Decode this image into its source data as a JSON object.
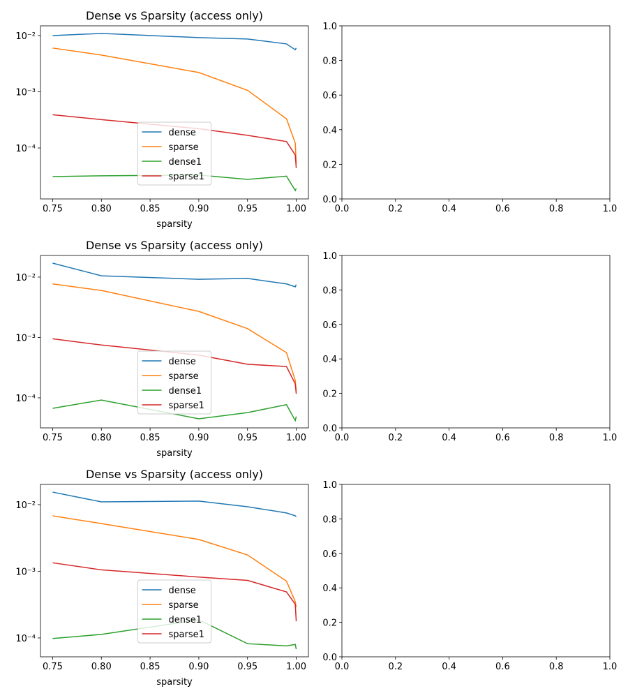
{
  "chart_data": [
    {
      "type": "line",
      "title": "Dense vs Sparsity (access only)",
      "x_label": "sparsity",
      "yscale": "log",
      "legend": "lower center",
      "x": [
        0.75,
        0.8,
        0.9,
        0.95,
        0.99,
        0.999,
        1.0
      ],
      "xlim": [
        0.7375,
        1.0125
      ],
      "xticks": [
        0.75,
        {
          "value": 0.8,
          "label": "0.80"
        },
        0.85,
        {
          "value": 0.9,
          "label": "0.90"
        },
        0.95,
        {
          "value": 1.0,
          "label": "1.00"
        }
      ],
      "ylim": [
        1.24e-05,
        0.0149
      ],
      "yticks": [
        {
          "value": 0.0001,
          "label": "10⁻⁴"
        },
        {
          "value": 0.001,
          "label": "10⁻³"
        },
        {
          "value": 0.01,
          "label": "10⁻²"
        }
      ],
      "series": [
        {
          "name": "dense",
          "color": "#1f77b4",
          "values": [
            0.01,
            0.0109,
            0.0092,
            0.0087,
            0.0071,
            0.0056,
            0.006
          ]
        },
        {
          "name": "sparse",
          "color": "#ff7f0e",
          "values": [
            0.006,
            0.0045,
            0.0022,
            0.00106,
            0.00033,
            0.000122,
            5.2e-05
          ]
        },
        {
          "name": "dense1",
          "color": "#2ca02c",
          "values": [
            3.1e-05,
            3.2e-05,
            3.3e-05,
            2.76e-05,
            3.15e-05,
            1.75e-05,
            1.9e-05
          ]
        },
        {
          "name": "sparse1",
          "color": "#d62728",
          "values": [
            0.00039,
            0.00032,
            0.00022,
            0.000168,
            0.00013,
            7.5e-05,
            4.4e-05
          ]
        }
      ]
    },
    {
      "type": "empty",
      "xlim": [
        0,
        1
      ],
      "ylim": [
        0,
        1
      ],
      "xticks": [
        {
          "value": 0,
          "label": "0.0"
        },
        0.2,
        0.4,
        0.6,
        0.8,
        {
          "value": 1,
          "label": "1.0"
        }
      ],
      "yticks": [
        {
          "value": 0,
          "label": "0.0"
        },
        0.2,
        0.4,
        0.6,
        0.8,
        {
          "value": 1,
          "label": "1.0"
        }
      ]
    },
    {
      "type": "line",
      "title": "Dense vs Sparsity (access only)",
      "x_label": "sparsity",
      "yscale": "log",
      "legend": "lower center",
      "x": [
        0.75,
        0.8,
        0.9,
        0.95,
        0.99,
        0.999,
        1.0
      ],
      "xlim": [
        0.7375,
        1.0125
      ],
      "xticks": [
        0.75,
        {
          "value": 0.8,
          "label": "0.80"
        },
        0.85,
        {
          "value": 0.9,
          "label": "0.90"
        },
        0.95,
        {
          "value": 1.0,
          "label": "1.00"
        }
      ],
      "ylim": [
        3.18e-05,
        0.0228
      ],
      "yticks": [
        {
          "value": 0.0001,
          "label": "10⁻⁴"
        },
        {
          "value": 0.001,
          "label": "10⁻³"
        },
        {
          "value": 0.01,
          "label": "10⁻²"
        }
      ],
      "series": [
        {
          "name": "dense",
          "color": "#1f77b4",
          "values": [
            0.017,
            0.0105,
            0.0092,
            0.0095,
            0.0077,
            0.0069,
            0.0075
          ]
        },
        {
          "name": "sparse",
          "color": "#ff7f0e",
          "values": [
            0.0077,
            0.006,
            0.0027,
            0.0014,
            0.00056,
            0.000195,
            0.00013
          ]
        },
        {
          "name": "dense1",
          "color": "#2ca02c",
          "values": [
            6.7e-05,
            9.2e-05,
            4.5e-05,
            5.7e-05,
            7.7e-05,
            4.2e-05,
            4.9e-05
          ]
        },
        {
          "name": "sparse1",
          "color": "#d62728",
          "values": [
            0.00095,
            0.00075,
            0.00051,
            0.00036,
            0.00033,
            0.00017,
            0.000117
          ]
        }
      ]
    },
    {
      "type": "empty",
      "xlim": [
        0,
        1
      ],
      "ylim": [
        0,
        1
      ],
      "xticks": [
        {
          "value": 0,
          "label": "0.0"
        },
        0.2,
        0.4,
        0.6,
        0.8,
        {
          "value": 1,
          "label": "1.0"
        }
      ],
      "yticks": [
        {
          "value": 0,
          "label": "0.0"
        },
        0.2,
        0.4,
        0.6,
        0.8,
        {
          "value": 1,
          "label": "1.0"
        }
      ]
    },
    {
      "type": "line",
      "title": "Dense vs Sparsity (access only)",
      "x_label": "sparsity",
      "yscale": "log",
      "legend": "lower center",
      "x": [
        0.75,
        0.8,
        0.9,
        0.95,
        0.99,
        0.999,
        1.0
      ],
      "xlim": [
        0.7375,
        1.0125
      ],
      "xticks": [
        0.75,
        {
          "value": 0.8,
          "label": "0.80"
        },
        0.85,
        {
          "value": 0.9,
          "label": "0.90"
        },
        0.95,
        {
          "value": 1.0,
          "label": "1.00"
        }
      ],
      "ylim": [
        5.21e-05,
        0.0201
      ],
      "yticks": [
        {
          "value": 0.0001,
          "label": "10⁻⁴"
        },
        {
          "value": 0.001,
          "label": "10⁻³"
        },
        {
          "value": 0.01,
          "label": "10⁻²"
        }
      ],
      "series": [
        {
          "name": "dense",
          "color": "#1f77b4",
          "values": [
            0.0154,
            0.011,
            0.0113,
            0.0093,
            0.0075,
            0.0068,
            0.0066
          ]
        },
        {
          "name": "sparse",
          "color": "#ff7f0e",
          "values": [
            0.0068,
            0.0052,
            0.003,
            0.00176,
            0.00071,
            0.00035,
            0.00029
          ]
        },
        {
          "name": "dense1",
          "color": "#2ca02c",
          "values": [
            9.8e-05,
            0.000113,
            0.000187,
            8.2e-05,
            7.6e-05,
            8e-05,
            6.8e-05
          ]
        },
        {
          "name": "sparse1",
          "color": "#d62728",
          "values": [
            0.00134,
            0.00105,
            0.00082,
            0.00073,
            0.00049,
            0.00032,
            0.000178
          ]
        }
      ]
    },
    {
      "type": "empty",
      "xlim": [
        0,
        1
      ],
      "ylim": [
        0,
        1
      ],
      "xticks": [
        {
          "value": 0,
          "label": "0.0"
        },
        0.2,
        0.4,
        0.6,
        0.8,
        {
          "value": 1,
          "label": "1.0"
        }
      ],
      "yticks": [
        {
          "value": 0,
          "label": "0.0"
        },
        0.2,
        0.4,
        0.6,
        0.8,
        {
          "value": 1,
          "label": "1.0"
        }
      ]
    }
  ]
}
